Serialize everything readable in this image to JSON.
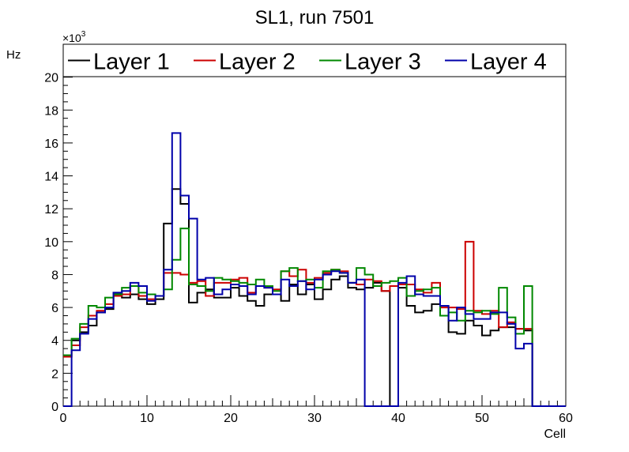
{
  "chart_data": {
    "type": "step-histogram",
    "title": "SL1, run 7501",
    "xlabel": "Cell",
    "ylabel": "Hz",
    "y_multiplier_label": "×10",
    "y_multiplier_exponent": "3",
    "xlim": [
      0,
      60
    ],
    "ylim": [
      0,
      22
    ],
    "x_ticks": [
      0,
      10,
      20,
      30,
      40,
      50,
      60
    ],
    "y_ticks": [
      0,
      2,
      4,
      6,
      8,
      10,
      12,
      14,
      16,
      18,
      20
    ],
    "grid": false,
    "legend_position": "top",
    "bin_width": 1,
    "x_start": 0,
    "series": [
      {
        "name": "Layer 1",
        "color": "#000000",
        "values": [
          3.0,
          4.0,
          4.5,
          4.9,
          5.7,
          5.9,
          6.9,
          6.6,
          6.8,
          6.5,
          6.2,
          6.5,
          11.1,
          13.2,
          12.3,
          6.3,
          6.9,
          7.1,
          6.6,
          6.6,
          7.2,
          6.7,
          6.4,
          6.1,
          6.8,
          6.8,
          6.4,
          7.4,
          6.8,
          7.4,
          6.5,
          7.1,
          7.7,
          7.9,
          7.2,
          7.1,
          7.2,
          7.5,
          7.0,
          0.0,
          7.2,
          6.1,
          5.7,
          5.8,
          6.2,
          6.1,
          4.5,
          4.4,
          5.2,
          4.9,
          4.3,
          4.6,
          4.8,
          4.8,
          4.7,
          4.6,
          0,
          0,
          0,
          0
        ]
      },
      {
        "name": "Layer 2",
        "color": "#cc0000",
        "values": [
          3.0,
          3.7,
          4.8,
          5.5,
          5.8,
          6.2,
          6.7,
          6.8,
          7.3,
          6.7,
          6.5,
          6.7,
          8.1,
          8.1,
          8.0,
          7.5,
          7.6,
          6.7,
          7.5,
          7.5,
          7.7,
          7.8,
          6.9,
          7.3,
          7.2,
          7.1,
          8.2,
          7.9,
          8.3,
          7.5,
          7.8,
          8.1,
          8.3,
          8.2,
          7.5,
          7.4,
          7.7,
          7.6,
          7.0,
          7.3,
          7.4,
          7.4,
          7.1,
          6.9,
          7.5,
          6.0,
          6.0,
          5.9,
          10.0,
          5.8,
          5.6,
          5.8,
          4.8,
          5.1,
          4.7,
          4.7,
          0,
          0,
          0,
          0
        ]
      },
      {
        "name": "Layer 3",
        "color": "#008800",
        "values": [
          3.1,
          4.1,
          5.0,
          6.1,
          6.0,
          6.6,
          6.8,
          7.2,
          7.3,
          6.9,
          6.8,
          6.7,
          7.1,
          8.9,
          10.8,
          7.4,
          7.3,
          7.0,
          7.8,
          7.7,
          7.6,
          7.5,
          7.4,
          7.7,
          7.3,
          7.0,
          8.2,
          8.4,
          7.6,
          7.7,
          7.2,
          8.2,
          8.3,
          8.1,
          7.5,
          8.4,
          8.0,
          7.3,
          7.5,
          7.6,
          7.8,
          6.7,
          7.0,
          7.1,
          7.2,
          5.5,
          5.7,
          5.2,
          5.8,
          5.7,
          5.8,
          5.6,
          7.2,
          5.4,
          4.4,
          7.3,
          0,
          0,
          0,
          0
        ]
      },
      {
        "name": "Layer 4",
        "color": "#0000aa",
        "values": [
          0.0,
          3.4,
          4.4,
          5.3,
          5.7,
          6.0,
          6.9,
          7.0,
          7.5,
          7.3,
          6.4,
          6.7,
          8.3,
          16.6,
          12.8,
          11.4,
          7.7,
          7.8,
          6.8,
          7.1,
          7.4,
          7.3,
          6.8,
          7.3,
          7.2,
          6.8,
          7.7,
          7.3,
          7.6,
          7.1,
          7.7,
          8.0,
          8.2,
          8.1,
          7.5,
          7.7,
          0.0,
          0.0,
          0.0,
          0.0,
          7.5,
          7.9,
          6.8,
          6.7,
          6.7,
          6.1,
          5.2,
          6.0,
          5.6,
          5.3,
          5.3,
          5.7,
          5.7,
          5.0,
          3.5,
          3.8,
          0,
          0,
          0,
          0
        ]
      }
    ]
  }
}
